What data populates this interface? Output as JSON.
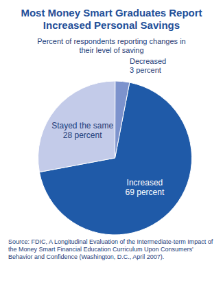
{
  "chart_data": {
    "type": "pie",
    "title": "Most Money Smart Graduates Report Increased Personal Savings",
    "subtitle": "Percent of respondents reporting changes in their level of saving",
    "categories": [
      "Increased",
      "Stayed the same",
      "Decreased"
    ],
    "values": [
      69,
      28,
      3
    ],
    "value_labels": [
      "69 percent",
      "28 percent",
      "3 percent"
    ],
    "colors": [
      "#1f5aa8",
      "#c3cbe9",
      "#7d93cd"
    ],
    "data_labels": true,
    "source": "Source: FDIC, A Longitudinal Evaluation of the Intermediate-term Impact of the Money Smart Financial Education Curriculum Upon Consumers' Behavior and Confidence (Washington, D.C., April 2007)."
  }
}
